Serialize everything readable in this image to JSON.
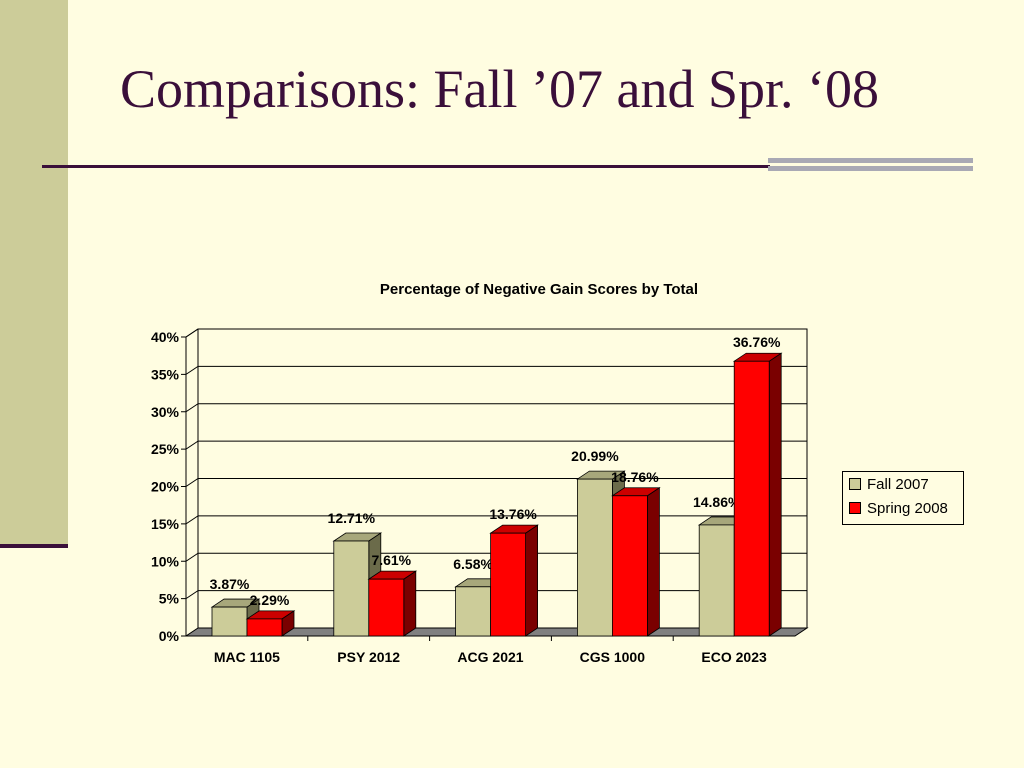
{
  "slide": {
    "title": "Comparisons: Fall ’07 and Spr. ‘08"
  },
  "chart_data": {
    "type": "bar",
    "title": "Percentage of Negative Gain Scores by Total",
    "categories": [
      "MAC 1105",
      "PSY 2012",
      "ACG 2021",
      "CGS 1000",
      "ECO 2023"
    ],
    "series": [
      {
        "name": "Fall 2007",
        "values": [
          3.87,
          12.71,
          6.58,
          20.99,
          14.86
        ],
        "labels": [
          "3.87%",
          "12.71%",
          "6.58%",
          "20.99%",
          "14.86%"
        ],
        "color": "#cccc99",
        "side_color": "#6b6b4a",
        "top_color": "#a7a77b"
      },
      {
        "name": "Spring 2008",
        "values": [
          2.29,
          7.61,
          13.76,
          18.76,
          36.76
        ],
        "labels": [
          "2.29%",
          "7.61%",
          "13.76%",
          "18.76%",
          "36.76%"
        ],
        "color": "#ff0000",
        "side_color": "#7a0000",
        "top_color": "#cc0000"
      }
    ],
    "y_ticks": [
      "0%",
      "5%",
      "10%",
      "15%",
      "20%",
      "25%",
      "30%",
      "35%",
      "40%"
    ],
    "ylim": [
      0,
      40
    ],
    "grid": true,
    "legend": "right",
    "style": "3d-clustered-column"
  }
}
